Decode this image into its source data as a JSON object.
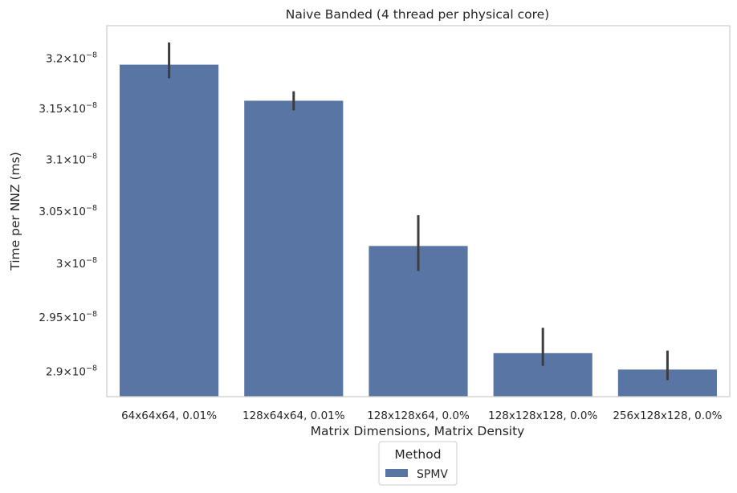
{
  "chart_data": {
    "type": "bar",
    "title": "Naive Banded (4 thread per physical core)",
    "xlabel": "Matrix Dimensions, Matrix Density",
    "ylabel": "Time per NNZ (ms)",
    "categories": [
      "64x64x64, 0.01%",
      "128x64x64, 0.01%",
      "128x128x64, 0.0%",
      "128x128x128, 0.0%",
      "256x128x128, 0.0%"
    ],
    "series": [
      {
        "name": "SPMV",
        "values": [
          3.194e-08,
          3.158e-08,
          3.017e-08,
          2.917e-08,
          2.902e-08
        ],
        "error_low": [
          3.18e-08,
          3.148e-08,
          2.993e-08,
          2.905e-08,
          2.892e-08
        ],
        "error_high": [
          3.216e-08,
          3.167e-08,
          3.046e-08,
          2.94e-08,
          2.919e-08
        ],
        "color": "#5975a4"
      }
    ],
    "y_ticks": [
      {
        "value": 2.9e-08,
        "mant": "2.9"
      },
      {
        "value": 2.95e-08,
        "mant": "2.95"
      },
      {
        "value": 3e-08,
        "mant": "3"
      },
      {
        "value": 3.05e-08,
        "mant": "3.05"
      },
      {
        "value": 3.1e-08,
        "mant": "3.1"
      },
      {
        "value": 3.15e-08,
        "mant": "3.15"
      },
      {
        "value": 3.2e-08,
        "mant": "3.2"
      }
    ],
    "y_tick_times": "×",
    "y_tick_base": "10",
    "y_tick_exp": "−8",
    "ylim": [
      2.877e-08,
      3.233e-08
    ],
    "yscale": "log",
    "grid": false,
    "legend": {
      "title": "Method",
      "placement": "bottom-center"
    }
  }
}
